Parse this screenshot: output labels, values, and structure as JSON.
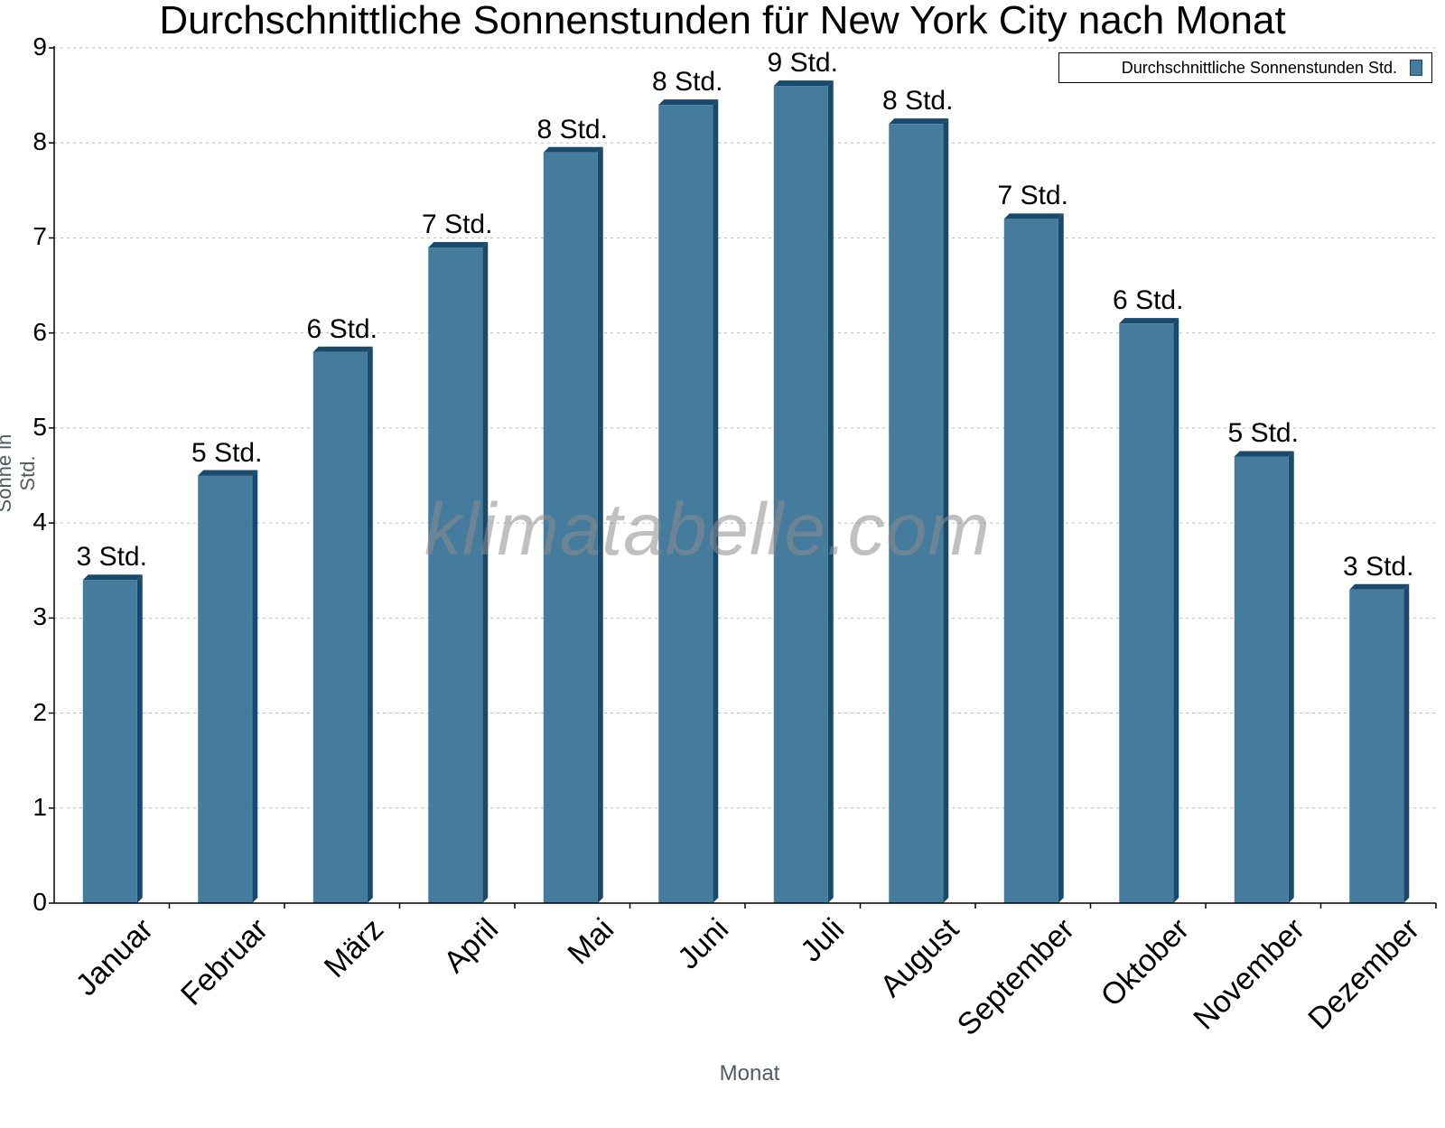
{
  "chart_data": {
    "type": "bar",
    "title": "Durchschnittliche Sonnenstunden für New York City nach Monat",
    "xlabel": "Monat",
    "ylabel": "Sonne in Std.",
    "categories": [
      "Januar",
      "Februar",
      "März",
      "April",
      "Mai",
      "Juni",
      "Juli",
      "August",
      "September",
      "Oktober",
      "November",
      "Dezember"
    ],
    "series": [
      {
        "name": "Durchschnittliche Sonnenstunden Std.",
        "values": [
          3.4,
          4.5,
          5.8,
          6.9,
          7.9,
          8.4,
          8.6,
          8.2,
          7.2,
          6.1,
          4.7,
          3.3
        ],
        "data_labels": [
          "3 Std.",
          "5 Std.",
          "6 Std.",
          "7 Std.",
          "8 Std.",
          "8 Std.",
          "9 Std.",
          "8 Std.",
          "7 Std.",
          "6 Std.",
          "5 Std.",
          "3 Std."
        ],
        "color": "#457b9d",
        "side_color": "#1a4a6b"
      }
    ],
    "ylim": [
      0,
      9
    ],
    "yticks": [
      "0",
      "1",
      "2",
      "3",
      "4",
      "5",
      "6",
      "7",
      "8",
      "9"
    ],
    "grid": true,
    "legend_position": "top-right",
    "watermark": "klimatabelle.com"
  }
}
